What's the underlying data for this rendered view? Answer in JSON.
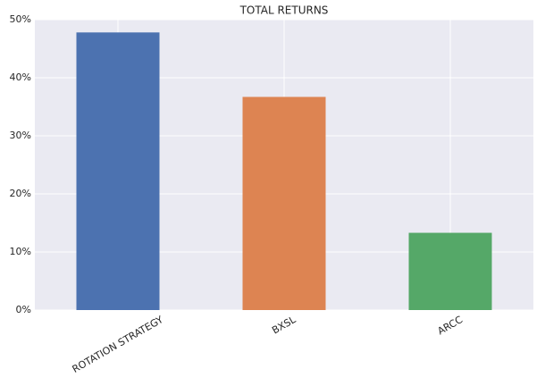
{
  "chart_data": {
    "type": "bar",
    "title": "TOTAL RETURNS",
    "categories": [
      "ROTATION STRATEGY",
      "BXSL",
      "ARCC"
    ],
    "values": [
      47.8,
      36.7,
      13.3
    ],
    "colors": [
      "#4c72b0",
      "#dd8452",
      "#55a868"
    ],
    "ylim": [
      0,
      50
    ],
    "yticks": [
      {
        "value": 0,
        "label": "0%"
      },
      {
        "value": 10,
        "label": "10%"
      },
      {
        "value": 20,
        "label": "20%"
      },
      {
        "value": 30,
        "label": "30%"
      },
      {
        "value": 40,
        "label": "40%"
      },
      {
        "value": 50,
        "label": "50%"
      }
    ],
    "grid": true
  }
}
